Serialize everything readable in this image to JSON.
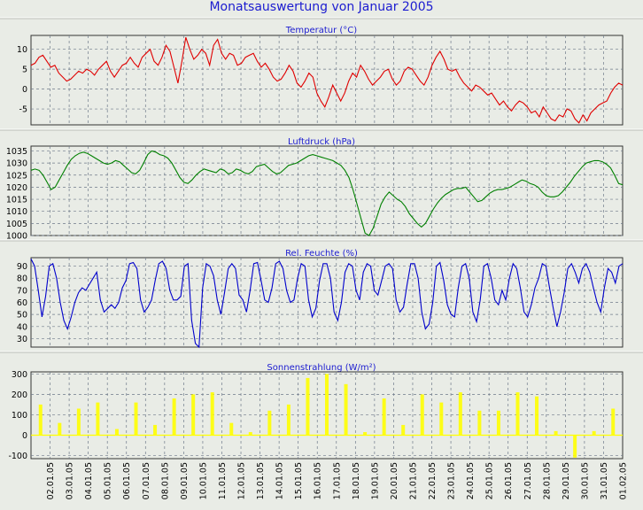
{
  "page_title": "Monatsauswertung von Januar 2005",
  "colors": {
    "background": "#e9ece6",
    "title": "#1c1cd0",
    "temperature": "#e00000",
    "pressure": "#008000",
    "humidity": "#0000cc",
    "radiation": "#ffff00",
    "grid": "#6f7a8a"
  },
  "chart_data": [
    {
      "type": "line",
      "title": "Temperatur (°C)",
      "ylim": [
        -9,
        13.5
      ],
      "yticks": [
        -5,
        0,
        5,
        10
      ],
      "ytick_labels": [
        "-5",
        "0",
        "5",
        "10"
      ],
      "grid": true,
      "series": [
        {
          "values": [
            6,
            6.5,
            8,
            8.5,
            7,
            5.5,
            6,
            4,
            3,
            2,
            2.5,
            3.5,
            4.5,
            4,
            5,
            4.5,
            3.5,
            5,
            6,
            7,
            4.5,
            3,
            4.5,
            6,
            6.5,
            8,
            6.5,
            5.5,
            8,
            9,
            10,
            7,
            6,
            8,
            11,
            9.5,
            5.5,
            1.5,
            7,
            13,
            10,
            7.5,
            8.5,
            10,
            9,
            6,
            11,
            12.5,
            9,
            7.5,
            9,
            8.5,
            6,
            6.5,
            8,
            8.5,
            9,
            7,
            5.5,
            6.5,
            5,
            3,
            2,
            2.5,
            4,
            6,
            4.5,
            1.5,
            0.5,
            2,
            4,
            3,
            -1,
            -3,
            -4.5,
            -2,
            1,
            -1,
            -3,
            -1,
            2,
            4,
            3,
            6,
            4.5,
            2.5,
            1,
            2,
            3,
            4.5,
            5,
            2.5,
            1,
            2,
            4.5,
            5.5,
            5,
            3.5,
            2,
            1,
            3,
            6,
            8,
            9.5,
            7.5,
            5,
            4.5,
            5,
            3,
            1.5,
            0.5,
            -0.5,
            1,
            0.5,
            -0.5,
            -1.5,
            -1,
            -2.5,
            -4,
            -3,
            -4.5,
            -5.5,
            -4,
            -3,
            -3.5,
            -4.5,
            -6,
            -5.5,
            -7,
            -4.5,
            -6,
            -7.5,
            -8,
            -6.5,
            -7,
            -5,
            -5.5,
            -7.5,
            -8.5,
            -6.5,
            -8,
            -6,
            -5,
            -4,
            -3.5,
            -3,
            -1,
            0.5,
            1.5,
            1
          ]
        }
      ]
    },
    {
      "type": "line",
      "title": "Luftdruck (hPa)",
      "ylim": [
        1000,
        1037
      ],
      "yticks": [
        1000,
        1005,
        1010,
        1015,
        1020,
        1025,
        1030,
        1035
      ],
      "ytick_labels": [
        "1000",
        "1005",
        "1010",
        "1015",
        "1020",
        "1025",
        "1030",
        "1035"
      ],
      "grid": true,
      "series": [
        {
          "values": [
            1027,
            1027.5,
            1027,
            1025,
            1022,
            1019,
            1020,
            1023,
            1026,
            1029,
            1031.5,
            1033,
            1034,
            1034.5,
            1034,
            1033,
            1032,
            1031,
            1030,
            1029.5,
            1030,
            1031,
            1030.5,
            1029,
            1027.5,
            1026,
            1025.5,
            1027,
            1030,
            1033.5,
            1035,
            1034.5,
            1033.5,
            1033,
            1032,
            1030,
            1027,
            1024,
            1022,
            1021.5,
            1023,
            1025,
            1026.5,
            1027.5,
            1027,
            1026.5,
            1026,
            1027.5,
            1027,
            1025.5,
            1026,
            1027.5,
            1027,
            1026,
            1025.5,
            1026.5,
            1028.5,
            1029,
            1029.5,
            1028,
            1026.5,
            1025.5,
            1026,
            1027.5,
            1029,
            1029.5,
            1030,
            1031,
            1032,
            1033,
            1033.5,
            1033,
            1032.5,
            1032,
            1031.5,
            1031,
            1030,
            1029,
            1027,
            1024,
            1019,
            1013,
            1007,
            1001,
            1000,
            1003,
            1008,
            1013,
            1016,
            1018,
            1016.5,
            1015,
            1014,
            1012,
            1009,
            1007,
            1005,
            1003.5,
            1005,
            1008,
            1011,
            1013.5,
            1015.5,
            1017,
            1018,
            1019,
            1019.5,
            1019.5,
            1020,
            1018,
            1016,
            1014,
            1014.5,
            1016,
            1017.5,
            1018.5,
            1019,
            1019,
            1019.5,
            1020,
            1021,
            1022,
            1023,
            1022.5,
            1021.5,
            1021,
            1020,
            1018,
            1016.5,
            1016,
            1016,
            1016.5,
            1018,
            1020,
            1022,
            1024.5,
            1026.5,
            1028.5,
            1030,
            1030.5,
            1031,
            1031,
            1030.5,
            1029.5,
            1028,
            1025,
            1021.5,
            1021
          ]
        }
      ]
    },
    {
      "type": "line",
      "title": "Rel. Feuchte (%)",
      "ylim": [
        23,
        97
      ],
      "yticks": [
        30,
        40,
        50,
        60,
        70,
        80,
        90
      ],
      "ytick_labels": [
        "30",
        "40",
        "50",
        "60",
        "70",
        "80",
        "90"
      ],
      "grid": true,
      "series": [
        {
          "values": [
            96,
            90,
            70,
            48,
            65,
            90,
            92,
            80,
            60,
            45,
            38,
            48,
            60,
            68,
            72,
            70,
            75,
            80,
            85,
            62,
            52,
            55,
            58,
            55,
            60,
            72,
            78,
            92,
            93,
            88,
            62,
            52,
            56,
            62,
            78,
            92,
            94,
            88,
            70,
            62,
            62,
            65,
            90,
            92,
            45,
            26,
            22,
            72,
            92,
            90,
            82,
            62,
            50,
            68,
            88,
            92,
            88,
            66,
            62,
            52,
            70,
            92,
            93,
            78,
            62,
            60,
            72,
            92,
            94,
            88,
            70,
            60,
            62,
            80,
            92,
            90,
            62,
            48,
            55,
            78,
            92,
            92,
            80,
            52,
            45,
            60,
            85,
            92,
            90,
            70,
            62,
            85,
            92,
            90,
            70,
            66,
            78,
            90,
            92,
            88,
            62,
            52,
            56,
            75,
            92,
            92,
            80,
            52,
            38,
            42,
            60,
            90,
            93,
            78,
            58,
            50,
            48,
            72,
            90,
            92,
            80,
            52,
            44,
            62,
            90,
            92,
            80,
            62,
            58,
            70,
            62,
            80,
            92,
            88,
            72,
            52,
            48,
            58,
            72,
            80,
            92,
            90,
            72,
            55,
            40,
            52,
            68,
            88,
            92,
            85,
            76,
            88,
            92,
            85,
            72,
            60,
            52,
            72,
            88,
            85,
            76,
            90,
            92
          ]
        }
      ]
    },
    {
      "type": "line",
      "title": "Sonnenstrahlung (W/m²)",
      "ylim": [
        -115,
        310
      ],
      "yticks": [
        -100,
        0,
        100,
        200,
        300
      ],
      "ytick_labels": [
        "-100",
        "0",
        "100",
        "200",
        "300"
      ],
      "grid": true,
      "categories": [
        "02.01.05",
        "03.01.05",
        "04.01.05",
        "05.01.05",
        "06.01.05",
        "07.01.05",
        "08.01.05",
        "09.01.05",
        "10.01.05",
        "11.01.05",
        "12.01.05",
        "13.01.05",
        "14.01.05",
        "15.01.05",
        "16.01.05",
        "17.01.05",
        "18.01.05",
        "19.01.05",
        "20.01.05",
        "21.01.05",
        "22.01.05",
        "23.01.05",
        "24.01.05",
        "25.01.05",
        "26.01.05",
        "27.01.05",
        "28.01.05",
        "29.01.05",
        "30.01.05",
        "31.01.05",
        "01.02.05"
      ],
      "series": [
        {
          "values": [
            150,
            60,
            130,
            160,
            30,
            160,
            50,
            180,
            200,
            210,
            60,
            15,
            120,
            150,
            280,
            300,
            250,
            15,
            180,
            50,
            200,
            160,
            210,
            120,
            120,
            210,
            190,
            20,
            -110,
            20,
            130
          ]
        }
      ]
    }
  ]
}
